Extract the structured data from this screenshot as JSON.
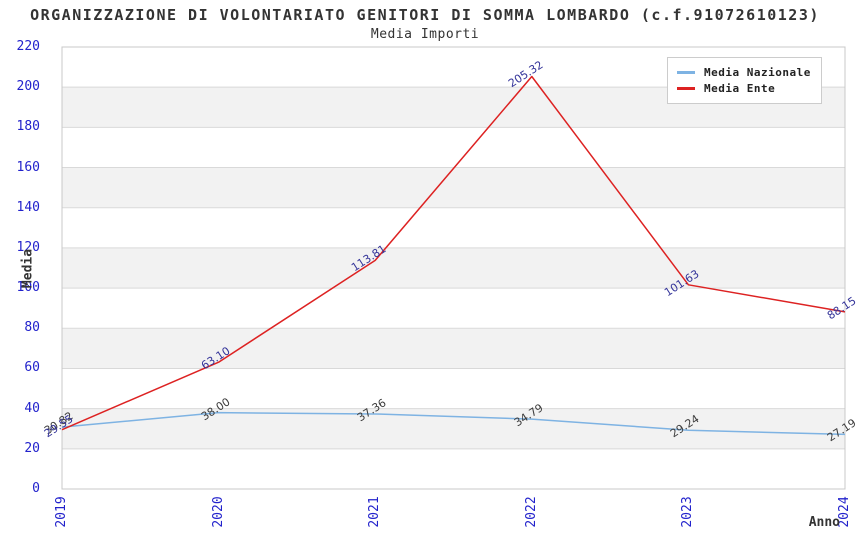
{
  "header": {
    "title": "ORGANIZZAZIONE DI VOLONTARIATO GENITORI DI SOMMA LOMBARDO (c.f.91072610123)",
    "subtitle": "Media Importi"
  },
  "chart_data": {
    "type": "line",
    "title": "ORGANIZZAZIONE DI VOLONTARIATO GENITORI DI SOMMA LOMBARDO (c.f.91072610123)",
    "subtitle": "Media Importi",
    "xlabel": "Anno",
    "ylabel": "Media",
    "categories": [
      "2019",
      "2020",
      "2021",
      "2022",
      "2023",
      "2024"
    ],
    "series": [
      {
        "name": "Media Nazionale",
        "color": "#7eb3e3",
        "label_color": "#3c3c3c",
        "values": [
          30.82,
          38.0,
          37.36,
          34.79,
          29.24,
          27.19
        ]
      },
      {
        "name": "Media Ente",
        "color": "#dd2222",
        "label_color": "#333399",
        "values": [
          29.55,
          63.1,
          113.81,
          205.32,
          101.63,
          88.15
        ]
      }
    ],
    "ylim": [
      0,
      220
    ],
    "y_ticks": [
      0,
      20,
      40,
      60,
      80,
      100,
      120,
      140,
      160,
      180,
      200,
      220
    ],
    "x_ticks": [
      "2019",
      "2020",
      "2021",
      "2022",
      "2023",
      "2024"
    ],
    "grid": true,
    "legend_position": "top-right",
    "style": {
      "axis_text_color": "#2222cc",
      "grid_color": "#d9d9d9",
      "band_color": "#f2f2f2",
      "border_color": "#c8c8c8",
      "title_color": "#333333"
    }
  }
}
